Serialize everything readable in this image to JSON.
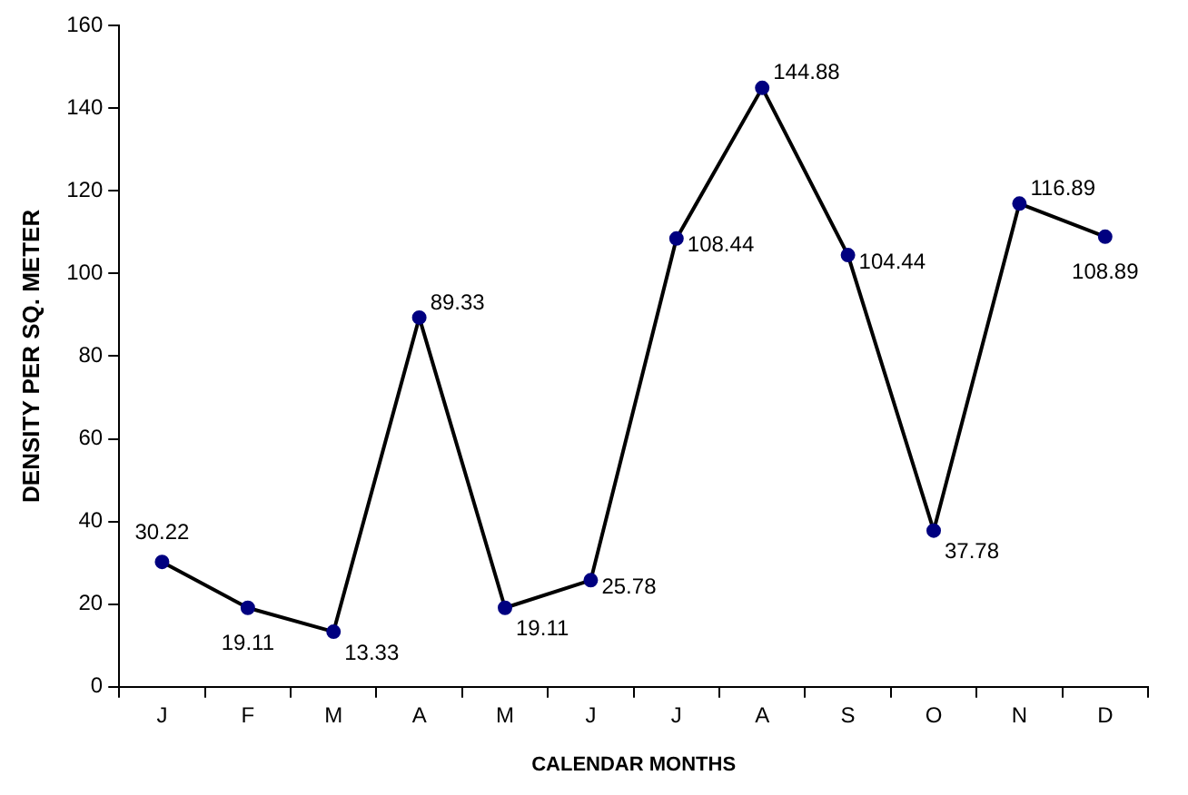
{
  "chart_data": {
    "type": "line",
    "xlabel": "CALENDAR MONTHS",
    "ylabel": "DENSITY PER SQ. METER",
    "categories": [
      "J",
      "F",
      "M",
      "A",
      "M",
      "J",
      "J",
      "A",
      "S",
      "O",
      "N",
      "D"
    ],
    "series": [
      {
        "color": "#000000",
        "values": [
          30.22,
          19.11,
          13.33,
          89.33,
          19.11,
          25.78,
          108.44,
          144.88,
          104.44,
          37.78,
          116.89,
          108.89
        ]
      }
    ],
    "ylim": [
      0,
      160
    ],
    "yticks": [
      0,
      20,
      40,
      60,
      80,
      100,
      120,
      140,
      160
    ],
    "grid": false,
    "legend": false,
    "marker": "circle",
    "line_style": "solid",
    "data_labels": true
  }
}
